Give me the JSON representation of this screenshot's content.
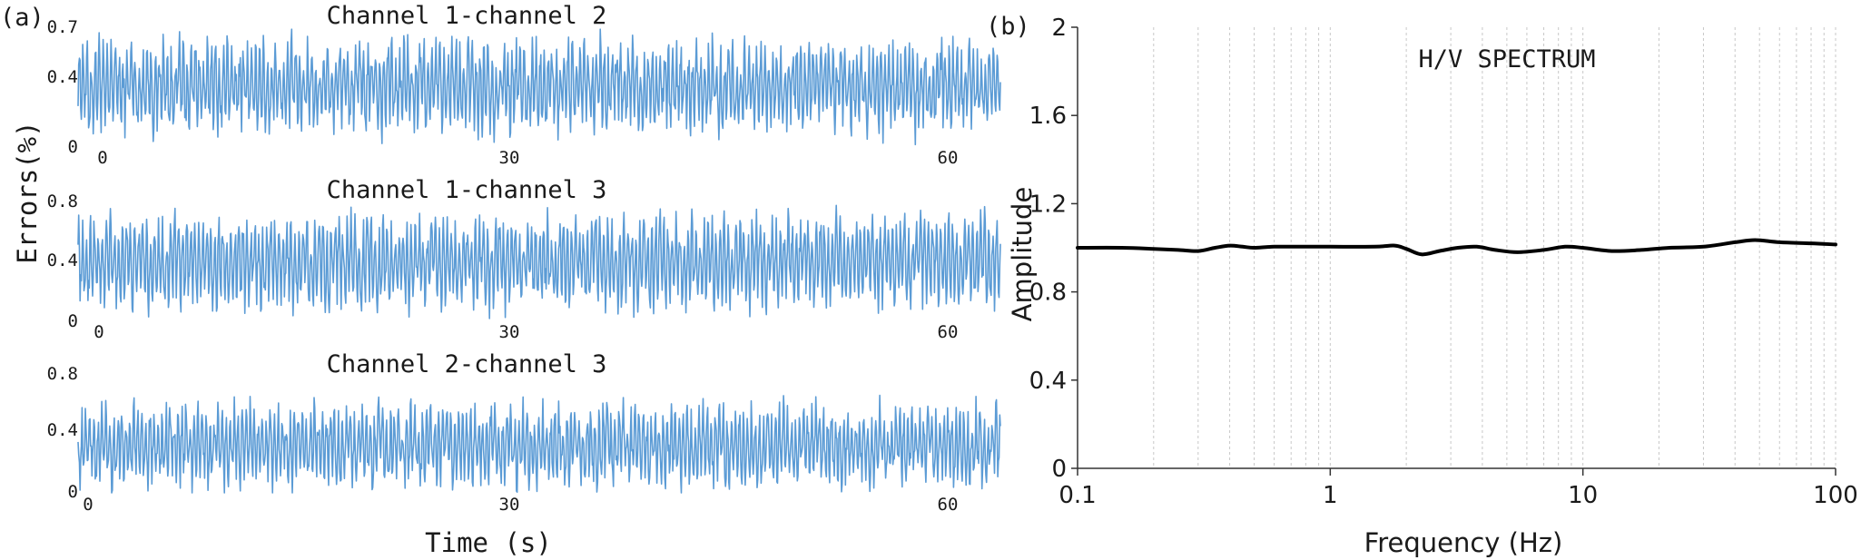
{
  "chart_data": [
    {
      "type": "line",
      "panel_label": "(a)",
      "ylabel": "Errors(%)",
      "xlabel": "Time (s)",
      "line_color": "#5b9bd5",
      "subplots": [
        {
          "title": "Channel 1-channel 2",
          "xlim": [
            0,
            60
          ],
          "ylim": [
            0,
            0.7
          ],
          "xticks": [
            "0",
            "30",
            "60"
          ],
          "yticks": [
            "0",
            "0.4",
            "0.7"
          ],
          "ytick_values": [
            0,
            0.4,
            0.7
          ],
          "signal": {
            "mean": 0.33,
            "amplitude": 0.17,
            "min": 0.0,
            "max": 0.64,
            "samples": 1400
          }
        },
        {
          "title": "Channel 1-channel 3",
          "xlim": [
            0,
            60
          ],
          "ylim": [
            0,
            0.8
          ],
          "xticks": [
            "0",
            "30",
            "60"
          ],
          "yticks": [
            "0",
            "0.4",
            "0.8"
          ],
          "ytick_values": [
            0,
            0.4,
            0.8
          ],
          "signal": {
            "mean": 0.37,
            "amplitude": 0.2,
            "min": 0.0,
            "max": 0.72,
            "samples": 1400
          }
        },
        {
          "title": "Channel 2-channel 3",
          "xlim": [
            0,
            60
          ],
          "ylim": [
            0,
            0.8
          ],
          "xticks": [
            "0",
            "30",
            "60"
          ],
          "yticks": [
            "0",
            "0.4",
            "0.8"
          ],
          "ytick_values": [
            0,
            0.4,
            0.8
          ],
          "signal": {
            "mean": 0.3,
            "amplitude": 0.18,
            "min": 0.0,
            "max": 0.7,
            "samples": 1400
          }
        }
      ]
    },
    {
      "type": "line",
      "panel_label": "(b)",
      "title": "H/V SPECTRUM",
      "xlabel": "Frequency (Hz)",
      "ylabel": "Amplitude",
      "xscale": "log",
      "xlim": [
        0.1,
        100
      ],
      "ylim": [
        0,
        2
      ],
      "xticks": [
        "0.1",
        "1",
        "10",
        "100"
      ],
      "xtick_values": [
        0.1,
        1,
        10,
        100
      ],
      "yticks": [
        "0",
        "0.4",
        "0.8",
        "1.2",
        "1.6",
        "2"
      ],
      "ytick_values": [
        0,
        0.4,
        0.8,
        1.2,
        1.6,
        2
      ],
      "grid": "vertical minor dotted",
      "line_color": "#000000",
      "series": [
        {
          "x": [
            0.1,
            0.15,
            0.2,
            0.25,
            0.3,
            0.35,
            0.4,
            0.45,
            0.5,
            0.6,
            0.8,
            1.0,
            1.5,
            1.8,
            2.0,
            2.3,
            2.7,
            3.2,
            3.8,
            4.5,
            5.5,
            7.0,
            8.5,
            10,
            13,
            17,
            22,
            30,
            40,
            48,
            60,
            80,
            100
          ],
          "y": [
            1.0,
            1.0,
            0.995,
            0.99,
            0.985,
            1.0,
            1.01,
            1.005,
            1.0,
            1.005,
            1.005,
            1.005,
            1.005,
            1.01,
            0.995,
            0.97,
            0.985,
            1.0,
            1.005,
            0.99,
            0.98,
            0.99,
            1.005,
            1.0,
            0.985,
            0.99,
            1.0,
            1.005,
            1.025,
            1.035,
            1.025,
            1.02,
            1.015
          ]
        }
      ]
    }
  ]
}
